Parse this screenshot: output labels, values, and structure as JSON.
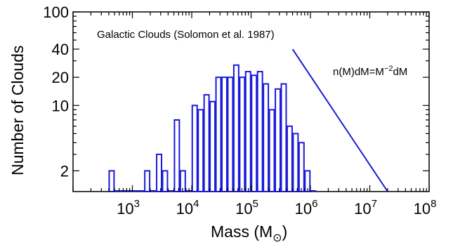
{
  "chart_data": {
    "type": "bar",
    "title": "",
    "annotation": "Galactic Clouds (Solomon et al. 1987)",
    "fit_label": "n(M)dM=M",
    "fit_label_exponent": "−2",
    "fit_label_suffix": "dM",
    "xlabel": "Mass (M",
    "xlabel_subscript": "⊙",
    "xlabel_close": ")",
    "ylabel": "Number of Clouds",
    "x_scale": "log",
    "y_scale": "log",
    "xlim": [
      100,
      100000000
    ],
    "ylim": [
      1.2,
      100
    ],
    "yticks": [
      {
        "value": 2,
        "label": "2"
      },
      {
        "value": 10,
        "label": "10"
      },
      {
        "value": 20,
        "label": "20"
      },
      {
        "value": 40,
        "label": "40"
      },
      {
        "value": 100,
        "label": "100"
      }
    ],
    "xticks": [
      {
        "value": 1000,
        "base": "10",
        "exp": "3"
      },
      {
        "value": 10000,
        "base": "10",
        "exp": "4"
      },
      {
        "value": 100000,
        "base": "10",
        "exp": "5"
      },
      {
        "value": 1000000,
        "base": "10",
        "exp": "6"
      },
      {
        "value": 10000000,
        "base": "10",
        "exp": "7"
      },
      {
        "value": 100000000,
        "base": "10",
        "exp": "8"
      }
    ],
    "bin_width_dex": 0.1,
    "bins_log_mass_start": [
      2.6,
      2.7,
      2.8,
      2.9,
      3.0,
      3.1,
      3.2,
      3.3,
      3.4,
      3.5,
      3.6,
      3.7,
      3.8,
      3.9,
      4.0,
      4.1,
      4.2,
      4.3,
      4.4,
      4.5,
      4.6,
      4.7,
      4.8,
      4.9,
      5.0,
      5.1,
      5.2,
      5.3,
      5.4,
      5.5,
      5.6,
      5.7,
      5.8,
      5.9,
      6.0,
      6.1,
      6.2,
      6.3,
      6.4,
      6.5,
      6.6,
      6.7,
      6.8,
      6.9,
      7.0,
      7.1,
      7.2,
      7.3
    ],
    "counts": [
      2,
      1,
      1,
      1,
      1,
      1,
      2,
      1,
      3,
      2,
      1,
      7,
      2,
      1,
      10,
      9,
      13,
      11,
      20,
      20,
      20,
      27,
      20,
      23,
      21,
      23,
      17,
      9,
      15,
      17,
      6,
      5,
      4,
      2,
      1,
      0,
      0,
      0,
      0,
      0,
      0,
      0,
      0,
      0,
      0,
      0,
      0,
      0
    ],
    "fit_line": {
      "x": [
        500000,
        20000000
      ],
      "y": [
        40,
        1.2
      ]
    },
    "grid": false,
    "colors": {
      "bars": "#1a1adb",
      "axes": "#000000",
      "fit": "#1a1adb"
    }
  }
}
